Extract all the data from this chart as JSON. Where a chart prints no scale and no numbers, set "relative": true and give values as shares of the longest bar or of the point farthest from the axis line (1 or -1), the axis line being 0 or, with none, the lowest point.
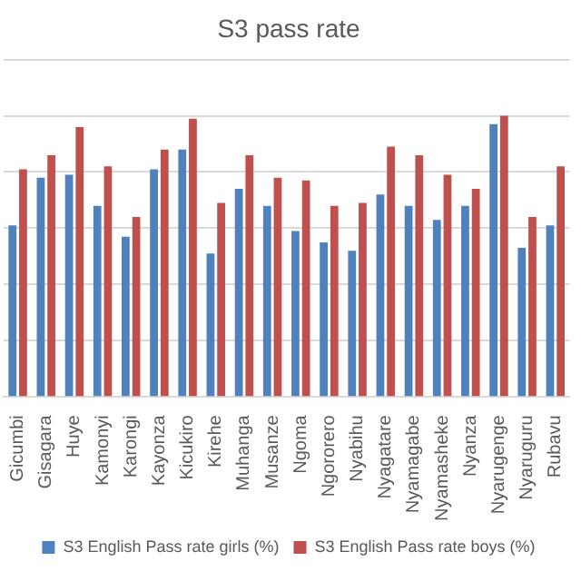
{
  "chart_data": {
    "type": "bar",
    "title": "S3 pass rate",
    "relative": true,
    "grid": "y",
    "legend": "bottom",
    "categories": [
      "Gicumbi",
      "Gisagara",
      "Huye",
      "Kamonyi",
      "Karongi",
      "Kayonza",
      "Kicukiro",
      "Kirehe",
      "Muhanga",
      "Musanze",
      "Ngoma",
      "Ngororero",
      "Nyabihu",
      "Nyagatare",
      "Nyamagabe",
      "Nyamasheke",
      "Nyanza",
      "Nyarugenge",
      "Nyaruguru",
      "Rubavu"
    ],
    "series": [
      {
        "name": "S3 English Pass rate girls (%)",
        "color": "#4f81bd",
        "values": [
          0.61,
          0.78,
          0.79,
          0.68,
          0.57,
          0.81,
          0.88,
          0.51,
          0.74,
          0.68,
          0.59,
          0.55,
          0.52,
          0.72,
          0.68,
          0.63,
          0.68,
          0.97,
          0.53,
          0.61
        ]
      },
      {
        "name": "S3 English Pass rate boys (%)",
        "color": "#c0504d",
        "values": [
          0.81,
          0.86,
          0.96,
          0.82,
          0.64,
          0.88,
          0.99,
          0.69,
          0.86,
          0.78,
          0.77,
          0.68,
          0.69,
          0.89,
          0.86,
          0.79,
          0.74,
          1,
          0.64,
          0.82
        ]
      }
    ]
  }
}
